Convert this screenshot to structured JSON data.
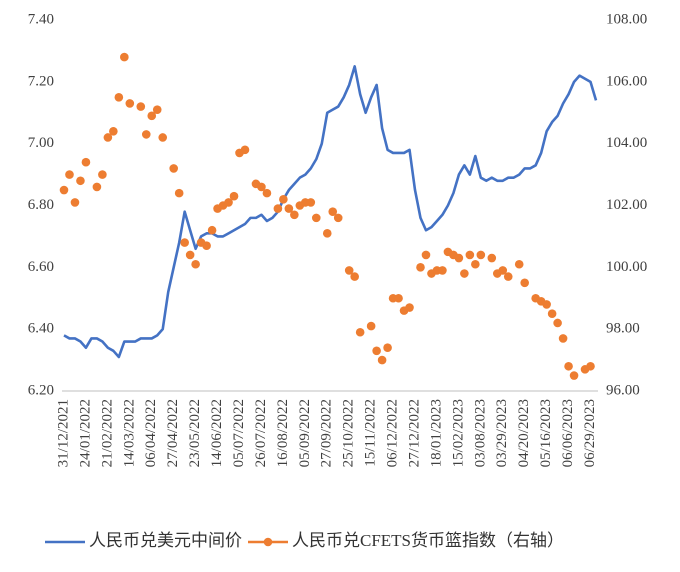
{
  "chart_data": {
    "type": "combo",
    "categories": [
      "31/12/2021",
      null,
      null,
      null,
      "24/01/2022",
      null,
      null,
      null,
      "21/02/2022",
      null,
      null,
      null,
      "14/03/2022",
      null,
      null,
      null,
      "06/04/2022",
      null,
      null,
      null,
      "27/04/2022",
      null,
      null,
      null,
      "23/05/2022",
      null,
      null,
      null,
      "14/06/2022",
      null,
      null,
      null,
      "05/07/2022",
      null,
      null,
      null,
      "26/07/2022",
      null,
      null,
      null,
      "16/08/2022",
      null,
      null,
      null,
      "05/09/2022",
      null,
      null,
      null,
      "27/09/2022",
      null,
      null,
      null,
      "25/10/2022",
      null,
      null,
      null,
      "15/11/2022",
      null,
      null,
      null,
      "06/12/2022",
      null,
      null,
      null,
      "27/12/2022",
      null,
      null,
      null,
      "18/01/2023",
      null,
      null,
      null,
      "15/02/2023",
      null,
      null,
      null,
      "03/08/2023",
      null,
      null,
      null,
      "03/29/2023",
      null,
      null,
      null,
      "04/20/2023",
      null,
      null,
      null,
      "05/16/2023",
      null,
      null,
      null,
      "06/06/2023",
      null,
      null,
      null,
      "06/29/2023",
      null
    ],
    "series": [
      {
        "name": "人民币兑美元中间价",
        "type": "line",
        "axis": "y",
        "color": "#4472c4",
        "values": [
          6.38,
          6.37,
          6.37,
          6.36,
          6.34,
          6.37,
          6.37,
          6.36,
          6.34,
          6.33,
          6.31,
          6.36,
          6.36,
          6.36,
          6.37,
          6.37,
          6.37,
          6.38,
          6.4,
          6.52,
          6.6,
          6.68,
          6.78,
          6.72,
          6.66,
          6.7,
          6.71,
          6.71,
          6.7,
          6.7,
          6.71,
          6.72,
          6.73,
          6.74,
          6.76,
          6.76,
          6.77,
          6.75,
          6.76,
          6.78,
          6.82,
          6.85,
          6.87,
          6.89,
          6.9,
          6.92,
          6.95,
          7.0,
          7.1,
          7.11,
          7.12,
          7.15,
          7.19,
          7.25,
          7.16,
          7.1,
          7.15,
          7.19,
          7.05,
          6.98,
          6.97,
          6.97,
          6.97,
          6.98,
          6.85,
          6.76,
          6.72,
          6.73,
          6.75,
          6.77,
          6.8,
          6.84,
          6.9,
          6.93,
          6.9,
          6.96,
          6.89,
          6.88,
          6.89,
          6.88,
          6.88,
          6.89,
          6.89,
          6.9,
          6.92,
          6.92,
          6.93,
          6.97,
          7.04,
          7.07,
          7.09,
          7.13,
          7.16,
          7.2,
          7.22,
          7.21,
          7.2,
          7.14
        ]
      },
      {
        "name": "人民币兑CFETS货币篮指数（右轴）",
        "type": "scatter",
        "axis": "y2",
        "color": "#ed7d31",
        "values": [
          102.5,
          103.0,
          102.1,
          102.8,
          103.4,
          null,
          102.6,
          103.0,
          104.2,
          104.4,
          105.5,
          106.8,
          105.3,
          null,
          105.2,
          104.3,
          104.9,
          105.1,
          104.2,
          null,
          103.2,
          102.4,
          100.8,
          100.4,
          100.1,
          100.8,
          100.7,
          101.2,
          101.9,
          102.0,
          102.1,
          102.3,
          103.7,
          103.8,
          null,
          102.7,
          102.6,
          102.4,
          null,
          101.9,
          102.2,
          101.9,
          101.7,
          102.0,
          102.1,
          102.1,
          101.6,
          null,
          101.1,
          101.8,
          101.6,
          null,
          99.9,
          99.7,
          97.9,
          null,
          98.1,
          97.3,
          97.0,
          97.4,
          99.0,
          99.0,
          98.6,
          98.7,
          null,
          100.0,
          100.4,
          99.8,
          99.9,
          99.9,
          100.5,
          100.4,
          100.3,
          99.8,
          100.4,
          100.1,
          100.4,
          null,
          100.3,
          99.8,
          99.9,
          99.7,
          null,
          100.1,
          99.5,
          null,
          99.0,
          98.9,
          98.8,
          98.5,
          98.2,
          97.7,
          96.8,
          96.5,
          null,
          96.7,
          96.8,
          null
        ]
      }
    ],
    "ylim": [
      6.2,
      7.4
    ],
    "yticks": [
      {
        "value": 6.2,
        "label": "6.20"
      },
      {
        "value": 6.4,
        "label": "6.40"
      },
      {
        "value": 6.6,
        "label": "6.60"
      },
      {
        "value": 6.8,
        "label": "6.80"
      },
      {
        "value": 7.0,
        "label": "7.00"
      },
      {
        "value": 7.2,
        "label": "7.20"
      },
      {
        "value": 7.4,
        "label": "7.40"
      }
    ],
    "y2lim": [
      96,
      108
    ],
    "y2ticks": [
      {
        "value": 96,
        "label": "96.00"
      },
      {
        "value": 98,
        "label": "98.00"
      },
      {
        "value": 100,
        "label": "100.00"
      },
      {
        "value": 102,
        "label": "102.00"
      },
      {
        "value": 104,
        "label": "104.00"
      },
      {
        "value": 106,
        "label": "106.00"
      },
      {
        "value": 108,
        "label": "108.00"
      }
    ],
    "grid": false,
    "legend": "bottom"
  }
}
